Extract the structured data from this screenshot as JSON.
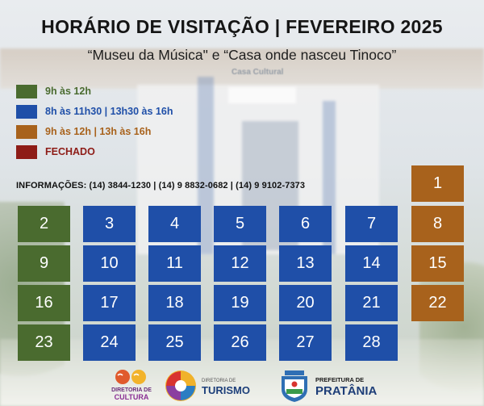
{
  "header": {
    "title": "HORÁRIO DE VISITAÇÃO | FEVEREIRO 2025",
    "subtitle": "“Museu da Música\" e “Casa onde nasceu Tinoco”"
  },
  "background": {
    "sign_text": "Casa Cultural"
  },
  "legend": [
    {
      "label": "9h às 12h",
      "color": "#4a6b2f"
    },
    {
      "label": "8h às 11h30 | 13h30 às 16h",
      "color": "#1f4fa8"
    },
    {
      "label": "9h às 12h | 13h às 16h",
      "color": "#a8621c"
    },
    {
      "label": "FECHADO",
      "color": "#8e1c17"
    }
  ],
  "info": "INFORMAÇÕES: (14) 3844-1230 | (14) 9 8832-0682 | (14) 9 9102-7373",
  "calendar": [
    {
      "day": "1",
      "type": 2
    },
    {
      "day": "2",
      "type": 0
    },
    {
      "day": "3",
      "type": 1
    },
    {
      "day": "4",
      "type": 1
    },
    {
      "day": "5",
      "type": 1
    },
    {
      "day": "6",
      "type": 1
    },
    {
      "day": "7",
      "type": 1
    },
    {
      "day": "8",
      "type": 2
    },
    {
      "day": "9",
      "type": 0
    },
    {
      "day": "10",
      "type": 1
    },
    {
      "day": "11",
      "type": 1
    },
    {
      "day": "12",
      "type": 1
    },
    {
      "day": "13",
      "type": 1
    },
    {
      "day": "14",
      "type": 1
    },
    {
      "day": "15",
      "type": 2
    },
    {
      "day": "16",
      "type": 0
    },
    {
      "day": "17",
      "type": 1
    },
    {
      "day": "18",
      "type": 1
    },
    {
      "day": "19",
      "type": 1
    },
    {
      "day": "20",
      "type": 1
    },
    {
      "day": "21",
      "type": 1
    },
    {
      "day": "22",
      "type": 2
    },
    {
      "day": "23",
      "type": 0
    },
    {
      "day": "24",
      "type": 1
    },
    {
      "day": "25",
      "type": 1
    },
    {
      "day": "26",
      "type": 1
    },
    {
      "day": "27",
      "type": 1
    },
    {
      "day": "28",
      "type": 1
    }
  ],
  "logos": {
    "cultura": {
      "line1": "DIRETORIA DE",
      "line2": "CULTURA"
    },
    "turismo": {
      "small": "DIRETORIA DE",
      "name": "TURISMO"
    },
    "prefeitura": {
      "line1": "PREFEITURA DE",
      "line2": "PRATÂNIA"
    }
  }
}
